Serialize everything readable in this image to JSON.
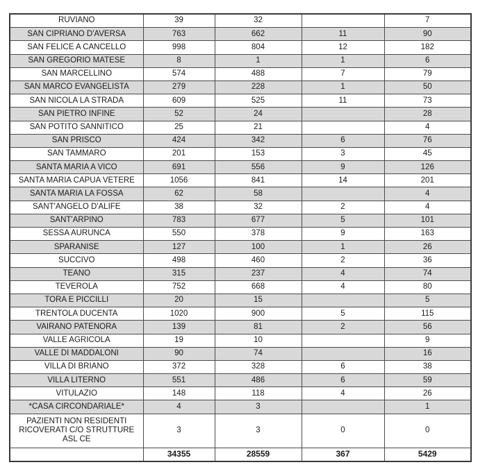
{
  "colors": {
    "row_shade": "#d9d9d9",
    "grid_border": "#4a4a4a",
    "outer_border": "#383838",
    "text": "#1a1a1a",
    "background": "#ffffff"
  },
  "table": {
    "column_count": 5,
    "rows": [
      {
        "name": "RUVIANO",
        "values": [
          "39",
          "32",
          "",
          "7"
        ],
        "shade": false
      },
      {
        "name": "SAN CIPRIANO D'AVERSA",
        "values": [
          "763",
          "662",
          "11",
          "90"
        ],
        "shade": true
      },
      {
        "name": "SAN FELICE A CANCELLO",
        "values": [
          "998",
          "804",
          "12",
          "182"
        ],
        "shade": false
      },
      {
        "name": "SAN GREGORIO MATESE",
        "values": [
          "8",
          "1",
          "1",
          "6"
        ],
        "shade": true
      },
      {
        "name": "SAN MARCELLINO",
        "values": [
          "574",
          "488",
          "7",
          "79"
        ],
        "shade": false
      },
      {
        "name": "SAN MARCO EVANGELISTA",
        "values": [
          "279",
          "228",
          "1",
          "50"
        ],
        "shade": true
      },
      {
        "name": "SAN NICOLA LA STRADA",
        "values": [
          "609",
          "525",
          "11",
          "73"
        ],
        "shade": false
      },
      {
        "name": "SAN PIETRO INFINE",
        "values": [
          "52",
          "24",
          "",
          "28"
        ],
        "shade": true
      },
      {
        "name": "SAN POTITO SANNITICO",
        "values": [
          "25",
          "21",
          "",
          "4"
        ],
        "shade": false
      },
      {
        "name": "SAN PRISCO",
        "values": [
          "424",
          "342",
          "6",
          "76"
        ],
        "shade": true
      },
      {
        "name": "SAN TAMMARO",
        "values": [
          "201",
          "153",
          "3",
          "45"
        ],
        "shade": false
      },
      {
        "name": "SANTA MARIA A VICO",
        "values": [
          "691",
          "556",
          "9",
          "126"
        ],
        "shade": true
      },
      {
        "name": "SANTA MARIA CAPUA VETERE",
        "values": [
          "1056",
          "841",
          "14",
          "201"
        ],
        "shade": false
      },
      {
        "name": "SANTA MARIA LA FOSSA",
        "values": [
          "62",
          "58",
          "",
          "4"
        ],
        "shade": true
      },
      {
        "name": "SANT'ANGELO D'ALIFE",
        "values": [
          "38",
          "32",
          "2",
          "4"
        ],
        "shade": false
      },
      {
        "name": "SANT'ARPINO",
        "values": [
          "783",
          "677",
          "5",
          "101"
        ],
        "shade": true
      },
      {
        "name": "SESSA AURUNCA",
        "values": [
          "550",
          "378",
          "9",
          "163"
        ],
        "shade": false
      },
      {
        "name": "SPARANISE",
        "values": [
          "127",
          "100",
          "1",
          "26"
        ],
        "shade": true
      },
      {
        "name": "SUCCIVO",
        "values": [
          "498",
          "460",
          "2",
          "36"
        ],
        "shade": false
      },
      {
        "name": "TEANO",
        "values": [
          "315",
          "237",
          "4",
          "74"
        ],
        "shade": true
      },
      {
        "name": "TEVEROLA",
        "values": [
          "752",
          "668",
          "4",
          "80"
        ],
        "shade": false
      },
      {
        "name": "TORA E PICCILLI",
        "values": [
          "20",
          "15",
          "",
          "5"
        ],
        "shade": true
      },
      {
        "name": "TRENTOLA DUCENTA",
        "values": [
          "1020",
          "900",
          "5",
          "115"
        ],
        "shade": false
      },
      {
        "name": "VAIRANO PATENORA",
        "values": [
          "139",
          "81",
          "2",
          "56"
        ],
        "shade": true
      },
      {
        "name": "VALLE AGRICOLA",
        "values": [
          "19",
          "10",
          "",
          "9"
        ],
        "shade": false
      },
      {
        "name": "VALLE DI MADDALONI",
        "values": [
          "90",
          "74",
          "",
          "16"
        ],
        "shade": true
      },
      {
        "name": "VILLA DI BRIANO",
        "values": [
          "372",
          "328",
          "6",
          "38"
        ],
        "shade": false
      },
      {
        "name": "VILLA LITERNO",
        "values": [
          "551",
          "486",
          "6",
          "59"
        ],
        "shade": true
      },
      {
        "name": "VITULAZIO",
        "values": [
          "148",
          "118",
          "4",
          "26"
        ],
        "shade": false
      },
      {
        "name": "*CASA CIRCONDARIALE*",
        "values": [
          "4",
          "3",
          "",
          "1"
        ],
        "shade": true
      },
      {
        "name": "PAZIENTI NON RESIDENTI RICOVERATI C/O STRUTTURE ASL CE",
        "values": [
          "3",
          "3",
          "0",
          "0"
        ],
        "shade": false,
        "tall": true
      },
      {
        "name": "",
        "values": [
          "34355",
          "28559",
          "367",
          "5429"
        ],
        "shade": false,
        "totals": true
      }
    ]
  }
}
